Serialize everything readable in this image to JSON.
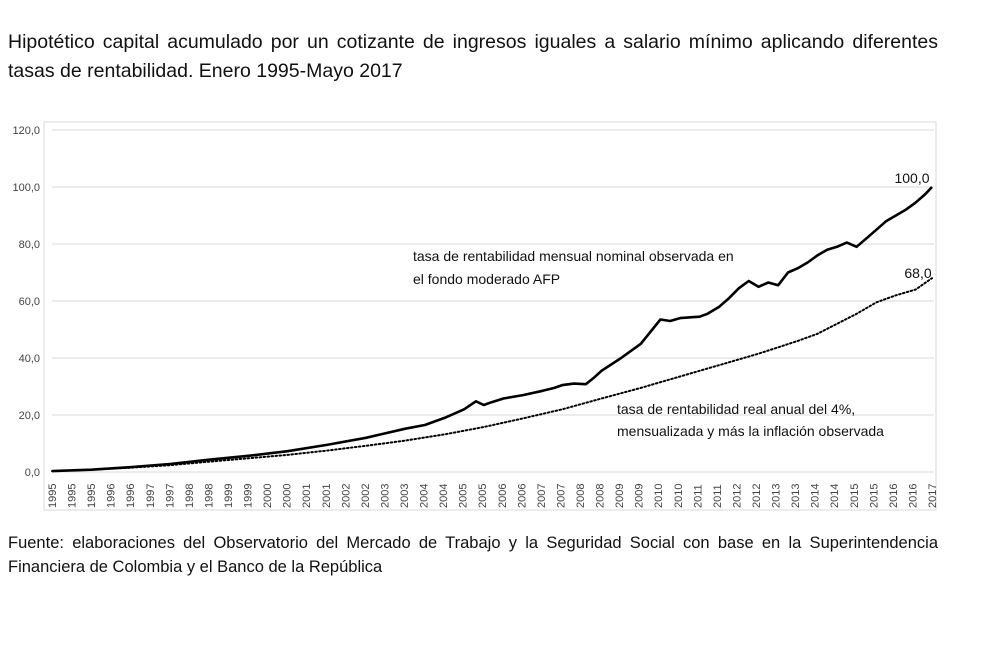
{
  "title": "Hipotético capital acumulado por un cotizante de ingresos iguales a salario mínimo aplicando diferentes tasas de rentabilidad. Enero 1995-Mayo 2017",
  "source": "Fuente: elaboraciones del Observatorio del Mercado de Trabajo y la Seguridad Social con base en la Superintendencia Financiera de Colombia y el Banco de la República",
  "chart_data": {
    "type": "line",
    "ylim": [
      0,
      120
    ],
    "yticks": [
      0,
      20,
      40,
      60,
      80,
      100,
      120
    ],
    "ytick_labels": [
      "0,0",
      "20,0",
      "40,0",
      "60,0",
      "80,0",
      "100,0",
      "120,0"
    ],
    "xlim": [
      1995.0,
      2017.42
    ],
    "xtick_labels": [
      "1995",
      "1995",
      "1995",
      "1996",
      "1996",
      "1997",
      "1997",
      "1998",
      "1998",
      "1999",
      "1999",
      "2000",
      "2000",
      "2001",
      "2001",
      "2002",
      "2002",
      "2003",
      "2003",
      "2004",
      "2004",
      "2005",
      "2005",
      "2006",
      "2006",
      "2007",
      "2007",
      "2008",
      "2008",
      "2009",
      "2009",
      "2010",
      "2010",
      "2011",
      "2011",
      "2012",
      "2012",
      "2013",
      "2013",
      "2014",
      "2014",
      "2015",
      "2015",
      "2016",
      "2016",
      "2017"
    ],
    "grid": "horizontal",
    "series": [
      {
        "name": "tasa de rentabilidad mensual nominal observada en el fondo moderado AFP",
        "style": "solid",
        "color": "#000000",
        "end_label": "100,0",
        "x": [
          1995.0,
          1996.0,
          1997.0,
          1998.0,
          1999.0,
          2000.0,
          2001.0,
          2002.0,
          2003.0,
          2004.0,
          2004.5,
          2005.0,
          2005.5,
          2005.8,
          2006.0,
          2006.2,
          2006.5,
          2007.0,
          2007.5,
          2007.8,
          2008.0,
          2008.3,
          2008.6,
          2008.8,
          2009.0,
          2009.5,
          2010.0,
          2010.5,
          2010.75,
          2011.0,
          2011.5,
          2011.7,
          2012.0,
          2012.25,
          2012.5,
          2012.75,
          2013.0,
          2013.25,
          2013.5,
          2013.75,
          2014.0,
          2014.25,
          2014.5,
          2014.75,
          2015.0,
          2015.25,
          2015.5,
          2015.75,
          2016.0,
          2016.25,
          2016.5,
          2016.75,
          2017.0,
          2017.25,
          2017.42
        ],
        "y": [
          0.3,
          0.8,
          1.7,
          2.8,
          4.3,
          5.7,
          7.3,
          9.5,
          12.0,
          15.2,
          16.5,
          19.0,
          22.0,
          24.8,
          23.5,
          24.5,
          25.8,
          27.0,
          28.5,
          29.5,
          30.5,
          31.0,
          30.8,
          33.0,
          35.5,
          40.0,
          45.0,
          53.5,
          53.0,
          54.0,
          54.5,
          55.5,
          58.0,
          61.0,
          64.5,
          67.0,
          65.0,
          66.5,
          65.5,
          70.0,
          71.5,
          73.5,
          76.0,
          78.0,
          79.0,
          80.5,
          79.0,
          82.0,
          85.0,
          88.0,
          90.0,
          92.0,
          94.5,
          97.5,
          100.0
        ]
      },
      {
        "name": "tasa de rentabilidad real anual del 4%, mensualizada y más la inflación observada",
        "style": "dotted",
        "color": "#000000",
        "end_label": "68,0",
        "x": [
          1995.0,
          1996.0,
          1997.0,
          1998.0,
          1999.0,
          2000.0,
          2001.0,
          2002.0,
          2003.0,
          2004.0,
          2005.0,
          2006.0,
          2007.0,
          2008.0,
          2009.0,
          2010.0,
          2011.0,
          2012.0,
          2013.0,
          2014.0,
          2014.5,
          2015.0,
          2015.5,
          2016.0,
          2016.5,
          2017.0,
          2017.42
        ],
        "y": [
          0.3,
          0.8,
          1.5,
          2.4,
          3.6,
          4.8,
          6.0,
          7.5,
          9.2,
          11.0,
          13.2,
          15.8,
          18.8,
          22.0,
          25.8,
          29.5,
          33.5,
          37.5,
          41.5,
          46.0,
          48.5,
          52.0,
          55.5,
          59.5,
          62.0,
          64.0,
          68.0
        ]
      }
    ],
    "annotations": [
      {
        "lines": [
          "tasa de rentabilidad mensual nominal observada en",
          "el fondo moderado AFP"
        ]
      },
      {
        "lines": [
          "tasa de rentabilidad real anual del 4%,",
          "mensualizada y más la inflación observada"
        ]
      }
    ]
  }
}
